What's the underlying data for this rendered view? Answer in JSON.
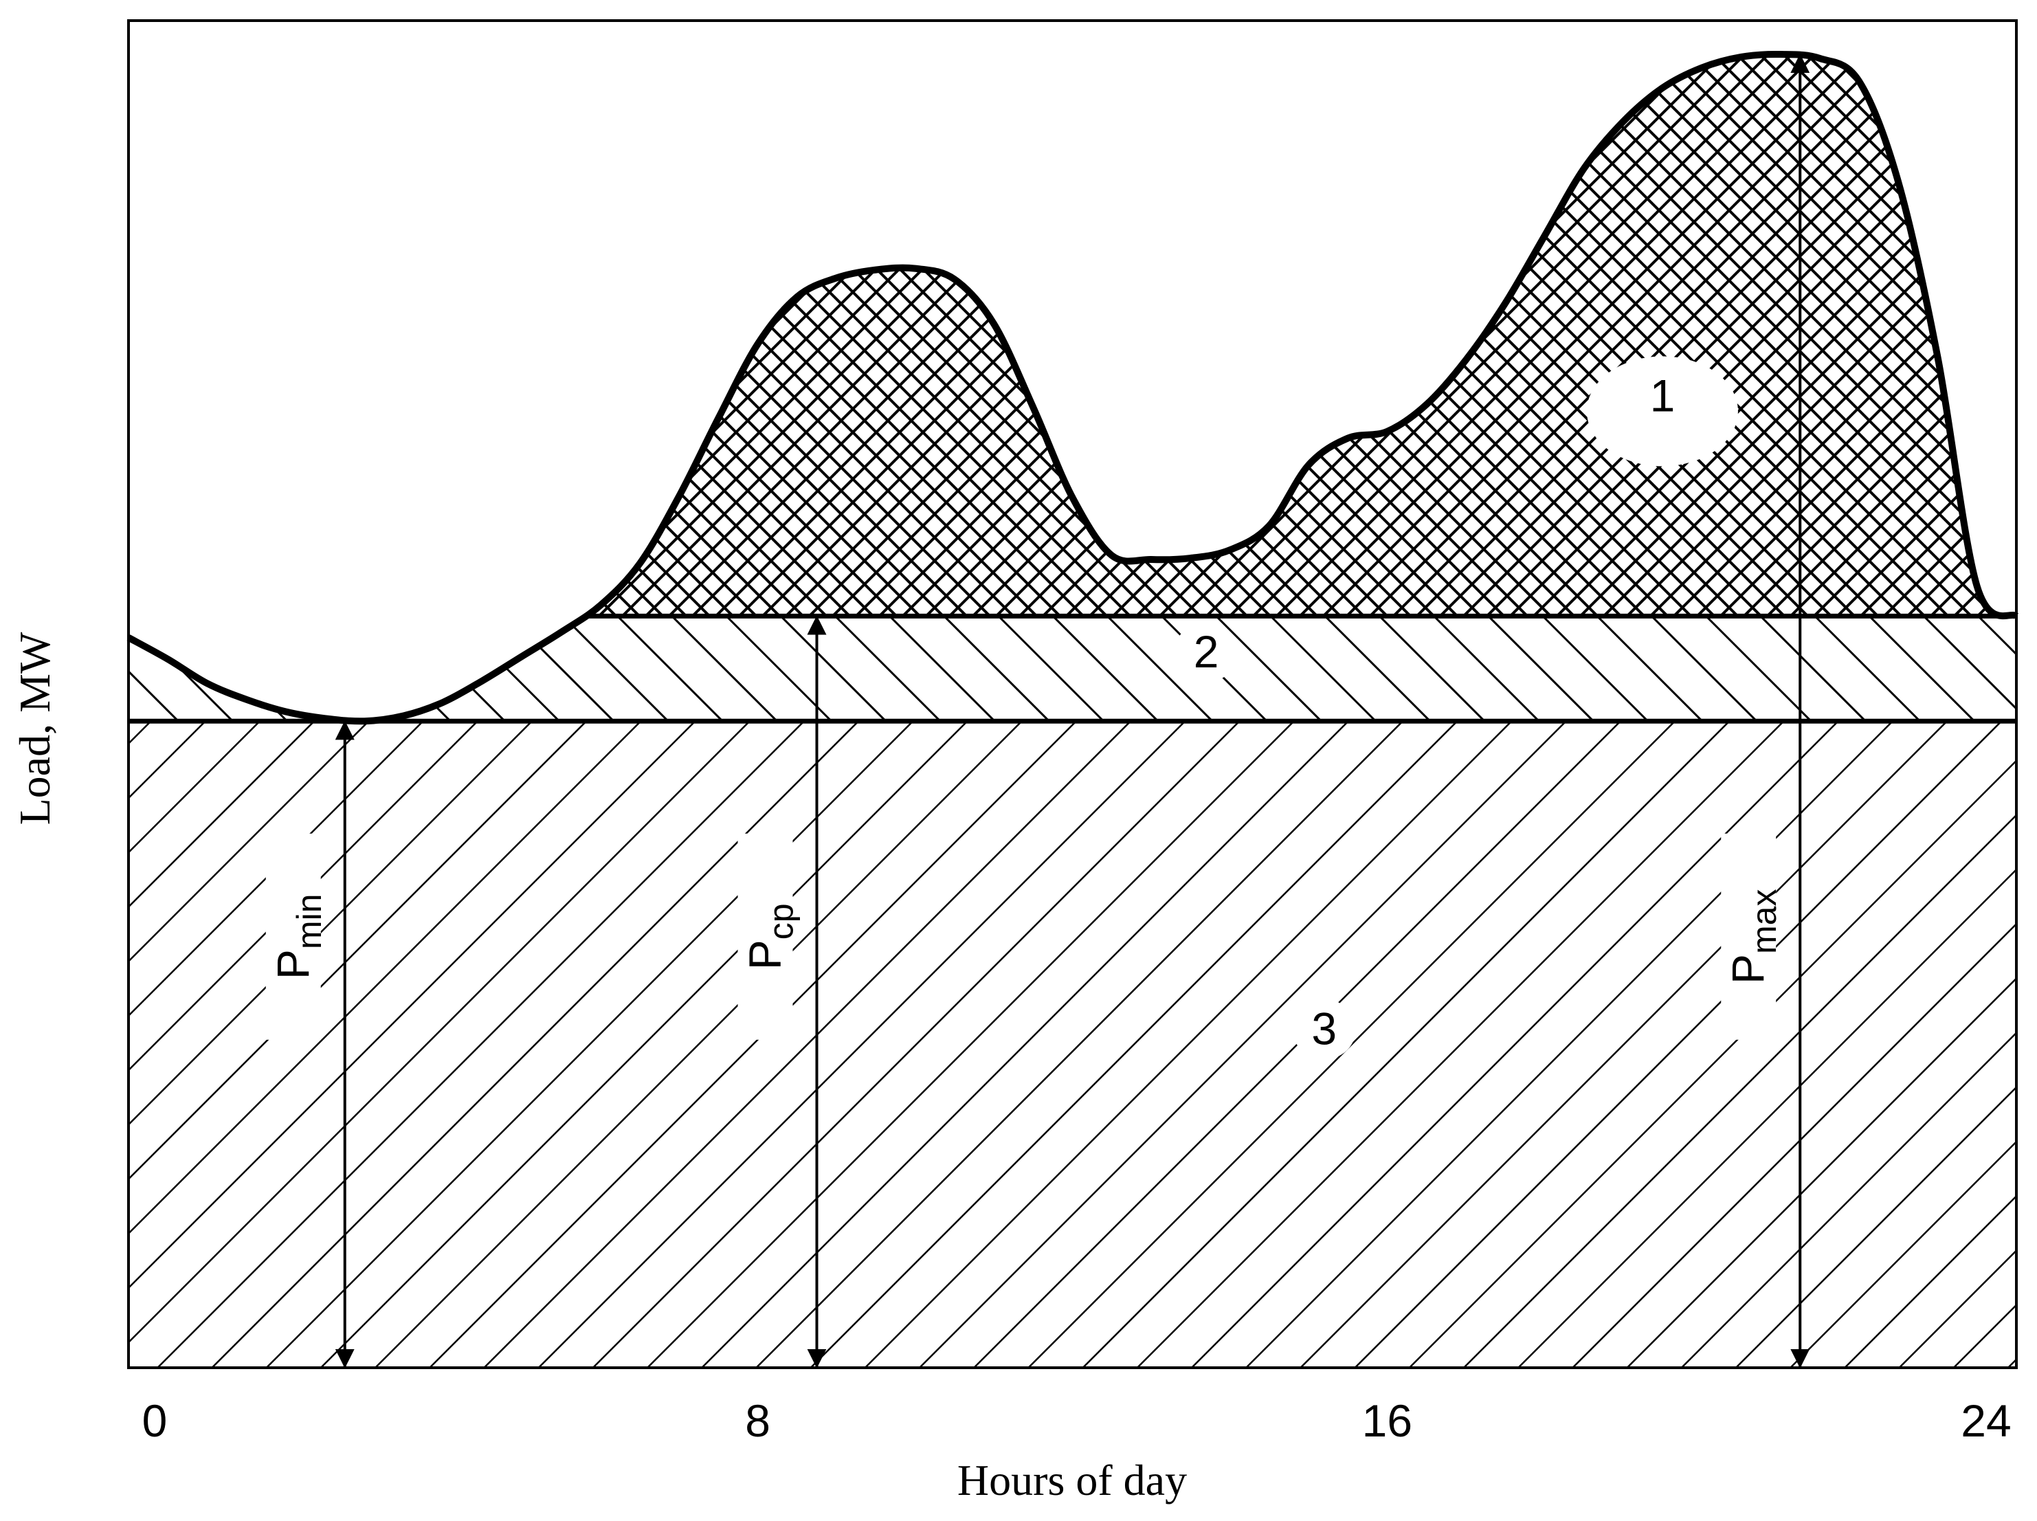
{
  "chart_data": {
    "type": "area",
    "xlabel": "Hours of day",
    "ylabel": "Load, MW",
    "xlim": [
      0,
      24
    ],
    "x_ticks": [
      {
        "value": 0,
        "label": "0"
      },
      {
        "value": 8,
        "label": "8"
      },
      {
        "value": 16,
        "label": "16"
      },
      {
        "value": 24,
        "label": "24"
      }
    ],
    "ylim": [
      0,
      100
    ],
    "grid": false,
    "load_curve": {
      "x": [
        0,
        0.5,
        1,
        1.5,
        2,
        2.5,
        3,
        3.5,
        4,
        4.5,
        5,
        5.5,
        6,
        6.5,
        7,
        7.5,
        8,
        8.5,
        9,
        9.5,
        10,
        10.5,
        11,
        11.5,
        12,
        12.5,
        13,
        13.5,
        14,
        14.5,
        15,
        15.5,
        16,
        16.5,
        17,
        17.5,
        18,
        18.5,
        19,
        19.5,
        20,
        20.5,
        21,
        21.5,
        22,
        22.5,
        23,
        23.5,
        24
      ],
      "y": [
        54.2,
        52.6,
        50.8,
        49.6,
        48.7,
        48.2,
        48.0,
        48.4,
        49.4,
        51.0,
        52.8,
        54.6,
        56.6,
        59.7,
        64.7,
        70.5,
        76.0,
        79.5,
        80.9,
        81.5,
        81.6,
        80.8,
        77.5,
        71.3,
        64.6,
        60.3,
        60.0,
        60.1,
        60.7,
        62.5,
        67.0,
        69.0,
        69.5,
        71.5,
        74.8,
        79.0,
        84.0,
        89.0,
        92.5,
        95.0,
        96.5,
        97.3,
        97.5,
        97.2,
        95.5,
        88.0,
        75.0,
        58.0,
        55.8
      ]
    },
    "levels": {
      "p_min": 48.0,
      "p_cp": 55.8
    },
    "annotations": [
      {
        "id": "p-min",
        "label": "P",
        "sub": "min",
        "x": 2.75,
        "from": 0,
        "to": 48.0
      },
      {
        "id": "p-cp",
        "label": "P",
        "sub": "cp",
        "x": 8.75,
        "from": 0,
        "to": 55.8
      },
      {
        "id": "p-max",
        "label": "P",
        "sub": "max",
        "x": 21.25,
        "from": 0,
        "to": 97.5
      }
    ],
    "zones": [
      {
        "id": "zone-1",
        "label": "1",
        "x": 19.5,
        "y": 71.0
      },
      {
        "id": "zone-2",
        "label": "2",
        "x": 13.7,
        "y": 52.0
      },
      {
        "id": "zone-3",
        "label": "3",
        "x": 15.2,
        "y": 24.0
      }
    ]
  }
}
